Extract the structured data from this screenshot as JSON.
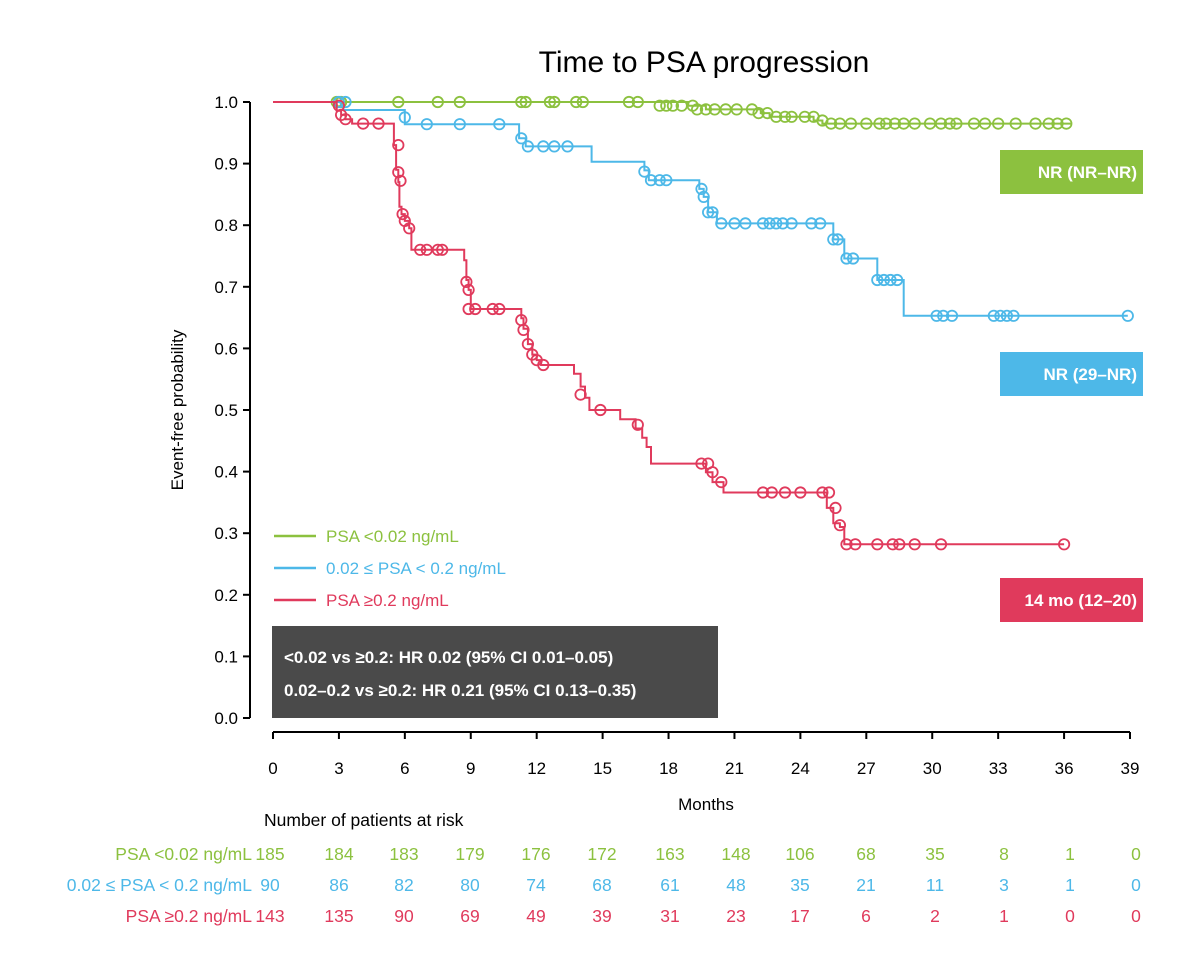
{
  "chart_data": {
    "type": "line",
    "title": "Time to PSA progression",
    "xlabel": "Months",
    "ylabel": "Event-free probability",
    "xlim": [
      0,
      39
    ],
    "ylim": [
      0,
      1
    ],
    "xticks": [
      "0",
      "3",
      "6",
      "9",
      "12",
      "15",
      "18",
      "21",
      "24",
      "27",
      "30",
      "33",
      "36",
      "39"
    ],
    "yticks": [
      "0.0",
      "0.1",
      "0.2",
      "0.3",
      "0.4",
      "0.5",
      "0.6",
      "0.7",
      "0.8",
      "0.9",
      "1.0"
    ],
    "grid": false,
    "legend_position": "bottom-left",
    "series": [
      {
        "name": "PSA <0.02 ng/mL",
        "color": "#8cc13f",
        "median_label": "NR (NR–NR)",
        "steps": [
          [
            0,
            1.0
          ],
          [
            18.9,
            0.994
          ],
          [
            19.7,
            0.988
          ],
          [
            22.2,
            0.982
          ],
          [
            22.6,
            0.976
          ],
          [
            24.6,
            0.97
          ],
          [
            25.0,
            0.965
          ]
        ],
        "end": 36.3,
        "censored": [
          [
            2.9,
            1.0
          ],
          [
            3.1,
            1.0
          ],
          [
            5.7,
            1.0
          ],
          [
            7.5,
            1.0
          ],
          [
            8.5,
            1.0
          ],
          [
            11.3,
            1.0
          ],
          [
            11.5,
            1.0
          ],
          [
            12.6,
            1.0
          ],
          [
            12.8,
            1.0
          ],
          [
            13.8,
            1.0
          ],
          [
            14.1,
            1.0
          ],
          [
            16.2,
            1.0
          ],
          [
            16.6,
            1.0
          ],
          [
            17.6,
            0.994
          ],
          [
            17.9,
            0.994
          ],
          [
            18.2,
            0.994
          ],
          [
            18.6,
            0.994
          ],
          [
            19.1,
            0.994
          ],
          [
            19.3,
            0.988
          ],
          [
            19.7,
            0.988
          ],
          [
            20.1,
            0.988
          ],
          [
            20.6,
            0.988
          ],
          [
            21.1,
            0.988
          ],
          [
            21.8,
            0.988
          ],
          [
            22.1,
            0.982
          ],
          [
            22.5,
            0.982
          ],
          [
            22.9,
            0.976
          ],
          [
            23.3,
            0.976
          ],
          [
            23.6,
            0.976
          ],
          [
            24.2,
            0.976
          ],
          [
            24.6,
            0.976
          ],
          [
            25.0,
            0.97
          ],
          [
            25.4,
            0.965
          ],
          [
            25.8,
            0.965
          ],
          [
            26.3,
            0.965
          ],
          [
            27.0,
            0.965
          ],
          [
            27.6,
            0.965
          ],
          [
            27.9,
            0.965
          ],
          [
            28.3,
            0.965
          ],
          [
            28.7,
            0.965
          ],
          [
            29.2,
            0.965
          ],
          [
            29.9,
            0.965
          ],
          [
            30.4,
            0.965
          ],
          [
            30.8,
            0.965
          ],
          [
            31.1,
            0.965
          ],
          [
            31.9,
            0.965
          ],
          [
            32.4,
            0.965
          ],
          [
            33.0,
            0.965
          ],
          [
            33.8,
            0.965
          ],
          [
            34.7,
            0.965
          ],
          [
            35.3,
            0.965
          ],
          [
            35.7,
            0.965
          ],
          [
            36.1,
            0.965
          ]
        ]
      },
      {
        "name": "0.02 ≤ PSA < 0.2 ng/mL",
        "color": "#4db8e8",
        "median_label": "NR (29–NR)",
        "steps": [
          [
            0,
            1.0
          ],
          [
            3.2,
            0.987
          ],
          [
            6.0,
            0.964
          ],
          [
            11.2,
            0.941
          ],
          [
            11.5,
            0.928
          ],
          [
            14.5,
            0.903
          ],
          [
            16.9,
            0.889
          ],
          [
            17.1,
            0.873
          ],
          [
            19.4,
            0.859
          ],
          [
            19.6,
            0.846
          ],
          [
            19.8,
            0.821
          ],
          [
            20.2,
            0.803
          ],
          [
            25.5,
            0.777
          ],
          [
            26.0,
            0.746
          ],
          [
            27.5,
            0.711
          ],
          [
            28.7,
            0.653
          ]
        ],
        "end": 38.9,
        "censored": [
          [
            3.0,
            1.0
          ],
          [
            3.3,
            1.0
          ],
          [
            6.0,
            0.975
          ],
          [
            7.0,
            0.964
          ],
          [
            8.5,
            0.964
          ],
          [
            10.3,
            0.964
          ],
          [
            11.3,
            0.941
          ],
          [
            11.6,
            0.928
          ],
          [
            12.3,
            0.928
          ],
          [
            12.8,
            0.928
          ],
          [
            13.4,
            0.928
          ],
          [
            16.9,
            0.887
          ],
          [
            17.2,
            0.873
          ],
          [
            17.6,
            0.873
          ],
          [
            17.9,
            0.873
          ],
          [
            19.5,
            0.859
          ],
          [
            19.6,
            0.846
          ],
          [
            19.8,
            0.821
          ],
          [
            20.0,
            0.821
          ],
          [
            20.4,
            0.803
          ],
          [
            21.0,
            0.803
          ],
          [
            21.5,
            0.803
          ],
          [
            22.3,
            0.803
          ],
          [
            22.6,
            0.803
          ],
          [
            22.9,
            0.803
          ],
          [
            23.2,
            0.803
          ],
          [
            23.6,
            0.803
          ],
          [
            24.5,
            0.803
          ],
          [
            24.9,
            0.803
          ],
          [
            25.5,
            0.777
          ],
          [
            25.7,
            0.777
          ],
          [
            26.1,
            0.746
          ],
          [
            26.4,
            0.746
          ],
          [
            27.5,
            0.711
          ],
          [
            27.8,
            0.711
          ],
          [
            28.1,
            0.711
          ],
          [
            28.4,
            0.711
          ],
          [
            30.2,
            0.653
          ],
          [
            30.5,
            0.653
          ],
          [
            30.9,
            0.653
          ],
          [
            32.8,
            0.653
          ],
          [
            33.1,
            0.653
          ],
          [
            33.4,
            0.653
          ],
          [
            33.7,
            0.653
          ],
          [
            38.9,
            0.653
          ]
        ]
      },
      {
        "name": "PSA ≥0.2 ng/mL",
        "color": "#e03a5c",
        "median_label": "14 mo (12–20)",
        "steps": [
          [
            0,
            1.0
          ],
          [
            2.9,
            0.986
          ],
          [
            3.1,
            0.979
          ],
          [
            3.3,
            0.972
          ],
          [
            3.6,
            0.965
          ],
          [
            5.5,
            0.93
          ],
          [
            5.6,
            0.89
          ],
          [
            5.7,
            0.87
          ],
          [
            5.75,
            0.83
          ],
          [
            5.85,
            0.818
          ],
          [
            6.0,
            0.807
          ],
          [
            6.2,
            0.795
          ],
          [
            6.3,
            0.76
          ],
          [
            8.7,
            0.743
          ],
          [
            8.8,
            0.711
          ],
          [
            8.9,
            0.695
          ],
          [
            9.0,
            0.664
          ],
          [
            11.3,
            0.649
          ],
          [
            11.4,
            0.632
          ],
          [
            11.6,
            0.607
          ],
          [
            11.8,
            0.59
          ],
          [
            12.0,
            0.581
          ],
          [
            12.2,
            0.573
          ],
          [
            13.7,
            0.559
          ],
          [
            14.0,
            0.538
          ],
          [
            14.2,
            0.52
          ],
          [
            14.4,
            0.5
          ],
          [
            15.8,
            0.485
          ],
          [
            16.5,
            0.47
          ],
          [
            16.8,
            0.455
          ],
          [
            17.0,
            0.44
          ],
          [
            17.2,
            0.413
          ],
          [
            19.7,
            0.399
          ],
          [
            20.0,
            0.383
          ],
          [
            20.5,
            0.366
          ],
          [
            25.2,
            0.341
          ],
          [
            25.5,
            0.316
          ],
          [
            25.8,
            0.31
          ],
          [
            26.0,
            0.282
          ]
        ],
        "end": 36.0,
        "censored": [
          [
            3.0,
            0.994
          ],
          [
            3.1,
            0.979
          ],
          [
            3.3,
            0.972
          ],
          [
            4.1,
            0.965
          ],
          [
            4.8,
            0.965
          ],
          [
            5.7,
            0.93
          ],
          [
            5.7,
            0.886
          ],
          [
            5.8,
            0.872
          ],
          [
            5.9,
            0.818
          ],
          [
            6.0,
            0.807
          ],
          [
            6.2,
            0.795
          ],
          [
            6.7,
            0.76
          ],
          [
            7.0,
            0.76
          ],
          [
            7.5,
            0.76
          ],
          [
            7.7,
            0.76
          ],
          [
            8.8,
            0.708
          ],
          [
            8.9,
            0.695
          ],
          [
            8.9,
            0.664
          ],
          [
            9.2,
            0.664
          ],
          [
            10.0,
            0.664
          ],
          [
            10.3,
            0.664
          ],
          [
            11.3,
            0.646
          ],
          [
            11.4,
            0.63
          ],
          [
            11.6,
            0.607
          ],
          [
            11.8,
            0.59
          ],
          [
            12.0,
            0.581
          ],
          [
            12.3,
            0.573
          ],
          [
            14.0,
            0.525
          ],
          [
            14.9,
            0.5
          ],
          [
            16.6,
            0.476
          ],
          [
            19.5,
            0.413
          ],
          [
            19.8,
            0.413
          ],
          [
            20.0,
            0.399
          ],
          [
            20.4,
            0.383
          ],
          [
            22.3,
            0.366
          ],
          [
            22.7,
            0.366
          ],
          [
            23.3,
            0.366
          ],
          [
            24.0,
            0.366
          ],
          [
            25.0,
            0.366
          ],
          [
            25.3,
            0.366
          ],
          [
            25.6,
            0.341
          ],
          [
            25.8,
            0.313
          ],
          [
            26.1,
            0.282
          ],
          [
            26.5,
            0.282
          ],
          [
            27.5,
            0.282
          ],
          [
            28.2,
            0.282
          ],
          [
            28.5,
            0.282
          ],
          [
            29.2,
            0.282
          ],
          [
            30.4,
            0.282
          ],
          [
            36.0,
            0.282
          ]
        ]
      }
    ],
    "hr_box": [
      "<0.02 vs ≥0.2: HR 0.02 (95% CI 0.01–0.05)",
      "0.02–0.2 vs ≥0.2: HR 0.21 (95% CI 0.13–0.35)"
    ],
    "risk_table": {
      "title": "Number of patients at risk",
      "rows": [
        {
          "label": "PSA <0.02 ng/mL",
          "color": "#8cc13f",
          "values": [
            "185",
            "184",
            "183",
            "179",
            "176",
            "172",
            "163",
            "148",
            "106",
            "68",
            "35",
            "8",
            "1",
            "0"
          ]
        },
        {
          "label": "0.02 ≤ PSA < 0.2 ng/mL",
          "color": "#4db8e8",
          "values": [
            "90",
            "86",
            "82",
            "80",
            "74",
            "68",
            "61",
            "48",
            "35",
            "21",
            "11",
            "3",
            "1",
            "0"
          ]
        },
        {
          "label": "PSA ≥0.2 ng/mL",
          "color": "#e03a5c",
          "values": [
            "143",
            "135",
            "90",
            "69",
            "49",
            "39",
            "31",
            "23",
            "17",
            "6",
            "2",
            "1",
            "0",
            "0"
          ]
        }
      ]
    }
  }
}
